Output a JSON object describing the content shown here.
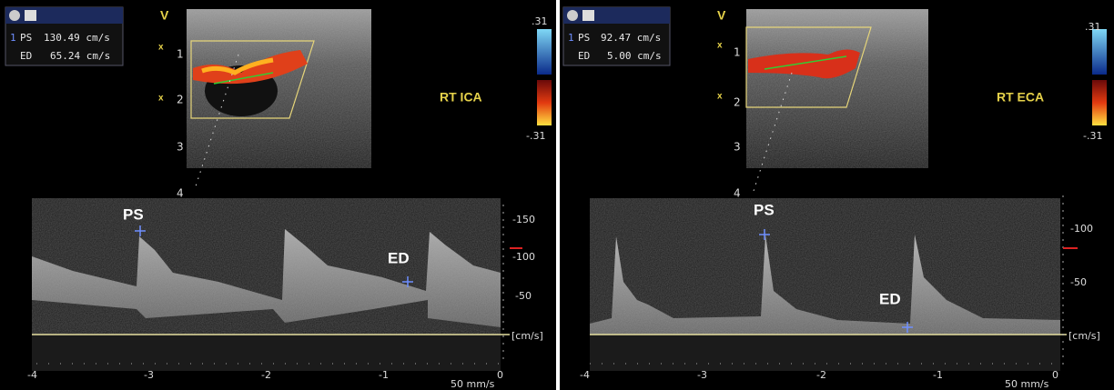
{
  "panels": [
    {
      "measurement": {
        "index": "1",
        "ps_label": "PS",
        "ps_value": "130.49 cm/s",
        "ed_label": "ED",
        "ed_value": "65.24 cm/s"
      },
      "mode_label": "V",
      "depth_labels": [
        "1",
        "2",
        "3",
        "4"
      ],
      "vessel": "RT ICA",
      "color_scale": {
        "top": ".31",
        "bottom": "-.31"
      },
      "markers": {
        "ps": "PS",
        "ed": "ED"
      },
      "velocity_labels": [
        "-150",
        "-100",
        "-50"
      ],
      "velocity_unit": "[cm/s]",
      "time_labels": [
        "-4",
        "-3",
        "-2",
        "-1",
        "0"
      ],
      "sweep_speed": "50 mm/s"
    },
    {
      "measurement": {
        "index": "1",
        "ps_label": "PS",
        "ps_value": "92.47 cm/s",
        "ed_label": "ED",
        "ed_value": "5.00 cm/s"
      },
      "mode_label": "V",
      "depth_labels": [
        "1",
        "2",
        "3",
        "4"
      ],
      "vessel": "RT ECA",
      "color_scale": {
        "top": ".31",
        "bottom": "-.31"
      },
      "markers": {
        "ps": "PS",
        "ed": "ED"
      },
      "velocity_labels": [
        "-100",
        "-50"
      ],
      "velocity_unit": "[cm/s]",
      "time_labels": [
        "-4",
        "-3",
        "-2",
        "-1",
        "0"
      ],
      "sweep_speed": "50 mm/s"
    }
  ]
}
